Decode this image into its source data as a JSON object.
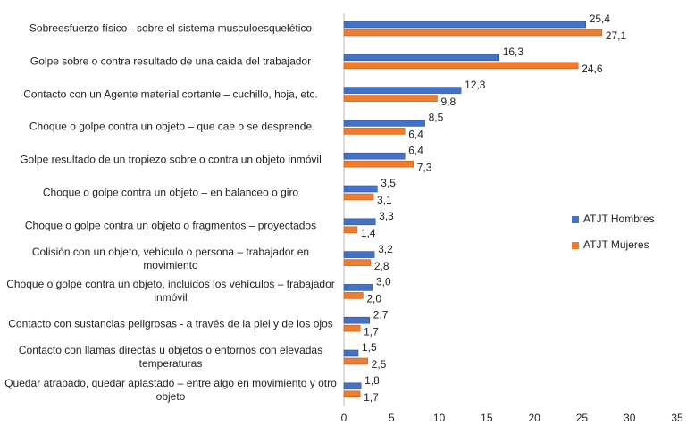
{
  "chart_data": {
    "type": "bar",
    "orientation": "horizontal",
    "categories": [
      "Sobreesfuerzo físico - sobre el sistema musculoesquelético",
      "Golpe sobre o contra resultado de una caída del trabajador",
      "Contacto con un Agente material cortante –  cuchillo, hoja, etc.",
      "Choque  o golpe contra un objeto – que cae o se desprende",
      "Golpe resultado de un tropiezo sobre o contra un objeto inmóvil",
      "Choque  o golpe contra un objeto – en balanceo o giro",
      "Choque  o golpe contra un objeto o fragmentos – proyectados",
      "Colisión  con un objeto, vehículo o persona – trabajador en movimiento",
      "Choque  o golpe contra un objeto, incluidos  los vehículos – trabajador inmóvil",
      "Contacto con sustancias peligrosas - a través de la piel y de los ojos",
      "Contacto con llamas directas u objetos o entornos con elevadas temperaturas",
      "Quedar atrapado, quedar aplastado – entre algo en movimiento y otro objeto"
    ],
    "series": [
      {
        "name": "ATJT Hombres",
        "color": "#4472c4",
        "values": [
          25.4,
          16.3,
          12.3,
          8.5,
          6.4,
          3.5,
          3.3,
          3.2,
          3.0,
          2.7,
          1.5,
          1.8
        ],
        "value_labels": [
          "25,4",
          "16,3",
          "12,3",
          "8,5",
          "6,4",
          "3,5",
          "3,3",
          "3,2",
          "3,0",
          "2,7",
          "1,5",
          "1,8"
        ]
      },
      {
        "name": "ATJT Mujeres",
        "color": "#ed7d31",
        "values": [
          27.1,
          24.6,
          9.8,
          6.4,
          7.3,
          3.1,
          1.4,
          2.8,
          2.0,
          1.7,
          2.5,
          1.7
        ],
        "value_labels": [
          "27,1",
          "24,6",
          "9,8",
          "6,4",
          "7,3",
          "3,1",
          "1,4",
          "2,8",
          "2,0",
          "1,7",
          "2,5",
          "1,7"
        ]
      }
    ],
    "xlim": [
      0,
      35
    ],
    "xticks": [
      0,
      5,
      10,
      15,
      20,
      25,
      30,
      35
    ],
    "legend": "right",
    "grid": false
  }
}
